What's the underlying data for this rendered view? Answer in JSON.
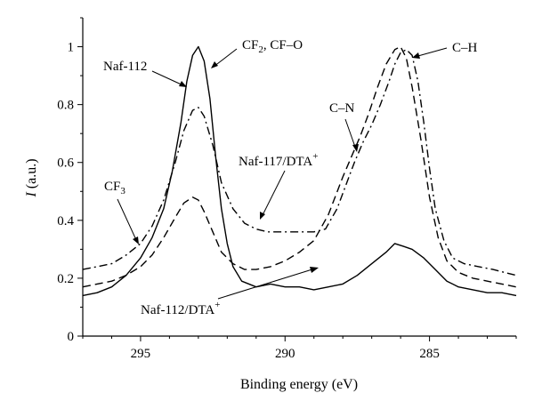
{
  "chart_data": {
    "type": "line",
    "xlabel": "Binding energy (eV)",
    "ylabel_main": "I",
    "ylabel_unit": " (a.u.)",
    "xlim": [
      297.0,
      282.0
    ],
    "ylim": [
      0,
      1.1
    ],
    "x_reversed": true,
    "xticks": [
      295,
      290,
      285
    ],
    "yticks": [
      0,
      0.2,
      0.4,
      0.6,
      0.8,
      1.0
    ],
    "ytick_labels": [
      "0",
      "0.2",
      "0.4",
      "0.6",
      "0.8",
      "1"
    ],
    "grid": false,
    "series": [
      {
        "name": "Naf-112",
        "dash": "solid",
        "x": [
          297.0,
          296.5,
          296.0,
          295.5,
          295.0,
          294.6,
          294.2,
          293.9,
          293.6,
          293.4,
          293.2,
          293.0,
          292.8,
          292.6,
          292.4,
          292.2,
          292.0,
          291.8,
          291.5,
          291.0,
          290.5,
          290.0,
          289.5,
          289.0,
          288.5,
          288.0,
          287.5,
          287.0,
          286.5,
          286.2,
          285.9,
          285.6,
          285.2,
          284.8,
          284.4,
          284.0,
          283.5,
          283.0,
          282.5,
          282.0
        ],
        "y": [
          0.14,
          0.15,
          0.17,
          0.21,
          0.27,
          0.34,
          0.44,
          0.57,
          0.74,
          0.88,
          0.97,
          1.0,
          0.95,
          0.82,
          0.62,
          0.44,
          0.32,
          0.24,
          0.19,
          0.17,
          0.18,
          0.17,
          0.17,
          0.16,
          0.17,
          0.18,
          0.21,
          0.25,
          0.29,
          0.32,
          0.31,
          0.3,
          0.27,
          0.23,
          0.19,
          0.17,
          0.16,
          0.15,
          0.15,
          0.14
        ]
      },
      {
        "name": "Naf-112/DTA+",
        "dash": "dashed",
        "x": [
          297.0,
          296.5,
          296.0,
          295.5,
          295.0,
          294.6,
          294.2,
          293.8,
          293.5,
          293.2,
          293.0,
          292.8,
          292.5,
          292.2,
          291.8,
          291.4,
          291.0,
          290.5,
          290.0,
          289.5,
          289.0,
          288.5,
          288.0,
          287.7,
          287.4,
          287.1,
          286.8,
          286.5,
          286.2,
          286.0,
          285.8,
          285.6,
          285.3,
          285.0,
          284.7,
          284.4,
          284.0,
          283.5,
          283.0,
          282.5,
          282.0
        ],
        "y": [
          0.17,
          0.18,
          0.19,
          0.21,
          0.24,
          0.28,
          0.34,
          0.41,
          0.46,
          0.48,
          0.47,
          0.43,
          0.36,
          0.29,
          0.25,
          0.23,
          0.23,
          0.24,
          0.26,
          0.29,
          0.33,
          0.42,
          0.55,
          0.62,
          0.69,
          0.77,
          0.86,
          0.94,
          0.99,
          1.0,
          0.96,
          0.86,
          0.68,
          0.48,
          0.34,
          0.26,
          0.22,
          0.2,
          0.19,
          0.18,
          0.17
        ]
      },
      {
        "name": "Naf-117/DTA+",
        "dash": "dashdot",
        "x": [
          297.0,
          296.5,
          296.0,
          295.5,
          295.0,
          294.6,
          294.2,
          293.8,
          293.5,
          293.2,
          293.0,
          292.8,
          292.5,
          292.2,
          291.8,
          291.4,
          291.0,
          290.6,
          290.2,
          289.8,
          289.4,
          289.0,
          288.6,
          288.2,
          287.9,
          287.6,
          287.3,
          287.0,
          286.7,
          286.4,
          286.2,
          286.0,
          285.8,
          285.6,
          285.4,
          285.2,
          285.0,
          284.8,
          284.5,
          284.2,
          283.8,
          283.3,
          282.8,
          282.4,
          282.0
        ],
        "y": [
          0.23,
          0.24,
          0.25,
          0.28,
          0.32,
          0.38,
          0.47,
          0.6,
          0.71,
          0.78,
          0.79,
          0.76,
          0.66,
          0.53,
          0.44,
          0.39,
          0.37,
          0.36,
          0.36,
          0.36,
          0.36,
          0.36,
          0.37,
          0.44,
          0.52,
          0.6,
          0.67,
          0.73,
          0.8,
          0.88,
          0.94,
          0.98,
          0.99,
          0.97,
          0.88,
          0.74,
          0.58,
          0.44,
          0.33,
          0.27,
          0.25,
          0.24,
          0.23,
          0.22,
          0.21
        ]
      }
    ],
    "annotations": {
      "naf112": "Naf-112",
      "cf2": "CF",
      "cf2_sub": "2",
      "cf2_rest": ", CF–O",
      "cn": "C–N",
      "ch": "C–H",
      "cf3": "CF",
      "cf3_sub": "3",
      "naf117": "Naf-117/DTA",
      "naf117_sup": "+",
      "naf112dta": "Naf-112/DTA",
      "naf112dta_sup": "+"
    }
  }
}
